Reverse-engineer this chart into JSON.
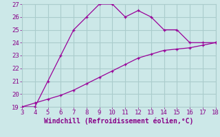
{
  "xlabel": "Windchill (Refroidissement éolien,°C)",
  "bg_color": "#cce8e8",
  "grid_color": "#aacccc",
  "line_color": "#990099",
  "curve1_x": [
    3,
    4,
    5,
    6,
    7,
    8,
    9,
    10,
    11,
    12,
    13,
    14,
    15,
    16,
    17,
    18
  ],
  "curve1_y": [
    19,
    19,
    21,
    23,
    25,
    26,
    27,
    27,
    26,
    26.5,
    26,
    25,
    25,
    24,
    24,
    24
  ],
  "curve2_x": [
    3,
    4,
    5,
    6,
    7,
    8,
    9,
    10,
    11,
    12,
    13,
    14,
    15,
    16,
    17,
    18
  ],
  "curve2_y": [
    19,
    19.3,
    19.6,
    19.9,
    20.3,
    20.8,
    21.3,
    21.8,
    22.3,
    22.8,
    23.1,
    23.4,
    23.5,
    23.6,
    23.8,
    24.0
  ],
  "xlim": [
    3,
    18
  ],
  "ylim": [
    19,
    27
  ],
  "xticks": [
    3,
    4,
    5,
    6,
    7,
    8,
    9,
    10,
    11,
    12,
    13,
    14,
    15,
    16,
    17,
    18
  ],
  "yticks": [
    19,
    20,
    21,
    22,
    23,
    24,
    25,
    26,
    27
  ],
  "tick_color": "#880088",
  "label_color": "#880088",
  "font_size": 6.5,
  "xlabel_font_size": 7.0
}
